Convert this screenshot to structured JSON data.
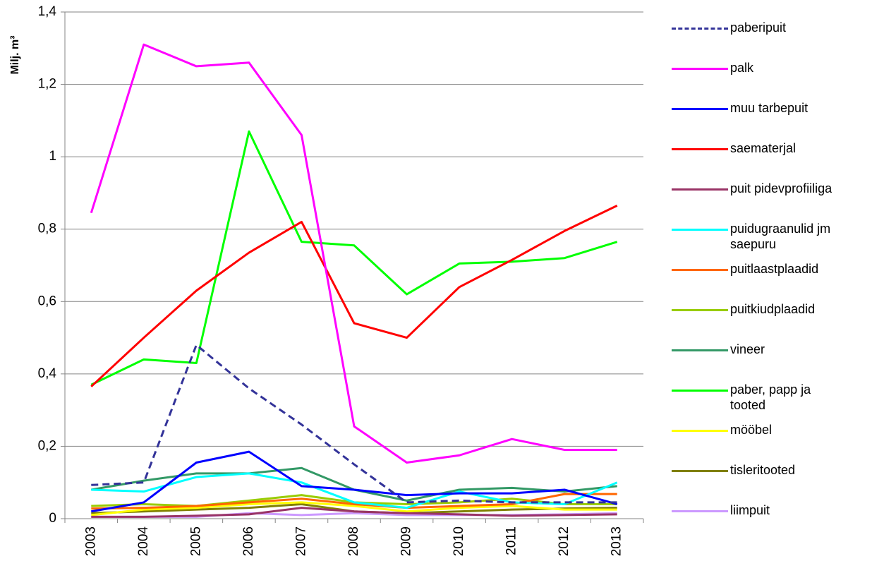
{
  "chart_data": {
    "type": "line",
    "y_label": "Milj. m³",
    "categories": [
      "2003",
      "2004",
      "2005",
      "2006",
      "2007",
      "2008",
      "2009",
      "2010",
      "2011",
      "2012",
      "2013"
    ],
    "ylim": [
      0,
      1.4
    ],
    "yticks": [
      0,
      {
        "value": 0.2,
        "label": "0,2"
      },
      {
        "value": 0.4,
        "label": "0,4"
      },
      {
        "value": 0.6,
        "label": "0,6"
      },
      {
        "value": 0.8,
        "label": "0,8"
      },
      1,
      {
        "value": 1.2,
        "label": "1,2"
      },
      {
        "value": 1.4,
        "label": "1,4"
      }
    ],
    "grid": true,
    "legend": "right",
    "series": [
      {
        "name": "paberipuit",
        "color": "#333399",
        "dash": true,
        "values": [
          0.093,
          0.1,
          0.48,
          0.36,
          0.26,
          0.15,
          0.045,
          0.05,
          0.045,
          0.045,
          0.045
        ]
      },
      {
        "name": "palk",
        "color": "#ff00ff",
        "values": [
          0.845,
          1.31,
          1.25,
          1.26,
          1.06,
          0.255,
          0.155,
          0.175,
          0.22,
          0.19,
          0.19
        ]
      },
      {
        "name": "muu tarbepuit",
        "color": "#0000ff",
        "values": [
          0.02,
          0.045,
          0.155,
          0.185,
          0.09,
          0.08,
          0.065,
          0.07,
          0.07,
          0.08,
          0.04
        ]
      },
      {
        "name": "saematerjal",
        "color": "#ff0000",
        "values": [
          0.365,
          0.5,
          0.63,
          0.735,
          0.82,
          0.54,
          0.5,
          0.64,
          0.715,
          0.795,
          0.865
        ]
      },
      {
        "name": "puit pidevprofiiliga",
        "color": "#993366",
        "values": [
          0.005,
          0.005,
          0.008,
          0.012,
          0.03,
          0.02,
          0.015,
          0.012,
          0.008,
          0.01,
          0.012
        ]
      },
      {
        "name": "puidugraanulid jm saepuru",
        "color": "#00ffff",
        "values": [
          0.08,
          0.075,
          0.115,
          0.125,
          0.1,
          0.045,
          0.03,
          0.075,
          0.045,
          0.04,
          0.1
        ]
      },
      {
        "name": "puitlaastplaadid",
        "color": "#ff6600",
        "values": [
          0.028,
          0.03,
          0.035,
          0.045,
          0.055,
          0.04,
          0.03,
          0.035,
          0.04,
          0.068,
          0.068
        ]
      },
      {
        "name": "puitkiudplaadid",
        "color": "#99cc00",
        "values": [
          0.035,
          0.04,
          0.035,
          0.05,
          0.065,
          0.045,
          0.04,
          0.045,
          0.055,
          0.04,
          0.04
        ]
      },
      {
        "name": "vineer",
        "color": "#339966",
        "values": [
          0.08,
          0.105,
          0.125,
          0.125,
          0.14,
          0.08,
          0.05,
          0.08,
          0.085,
          0.075,
          0.09
        ]
      },
      {
        "name": "paber, papp ja tooted",
        "color": "#00ff00",
        "values": [
          0.37,
          0.44,
          0.43,
          1.07,
          0.765,
          0.755,
          0.62,
          0.705,
          0.71,
          0.72,
          0.765
        ]
      },
      {
        "name": "mööbel",
        "color": "#ffff00",
        "values": [
          0.01,
          0.025,
          0.03,
          0.04,
          0.045,
          0.035,
          0.02,
          0.03,
          0.035,
          0.025,
          0.025
        ]
      },
      {
        "name": "tisleritooted",
        "color": "#808000",
        "values": [
          0.015,
          0.02,
          0.025,
          0.03,
          0.04,
          0.02,
          0.015,
          0.02,
          0.025,
          0.028,
          0.03
        ]
      },
      {
        "name": "liimpuit",
        "color": "#cc99ff",
        "values": [
          0.005,
          0.005,
          0.005,
          0.015,
          0.01,
          0.015,
          0.01,
          0.01,
          0.01,
          0.012,
          0.015
        ]
      }
    ]
  }
}
